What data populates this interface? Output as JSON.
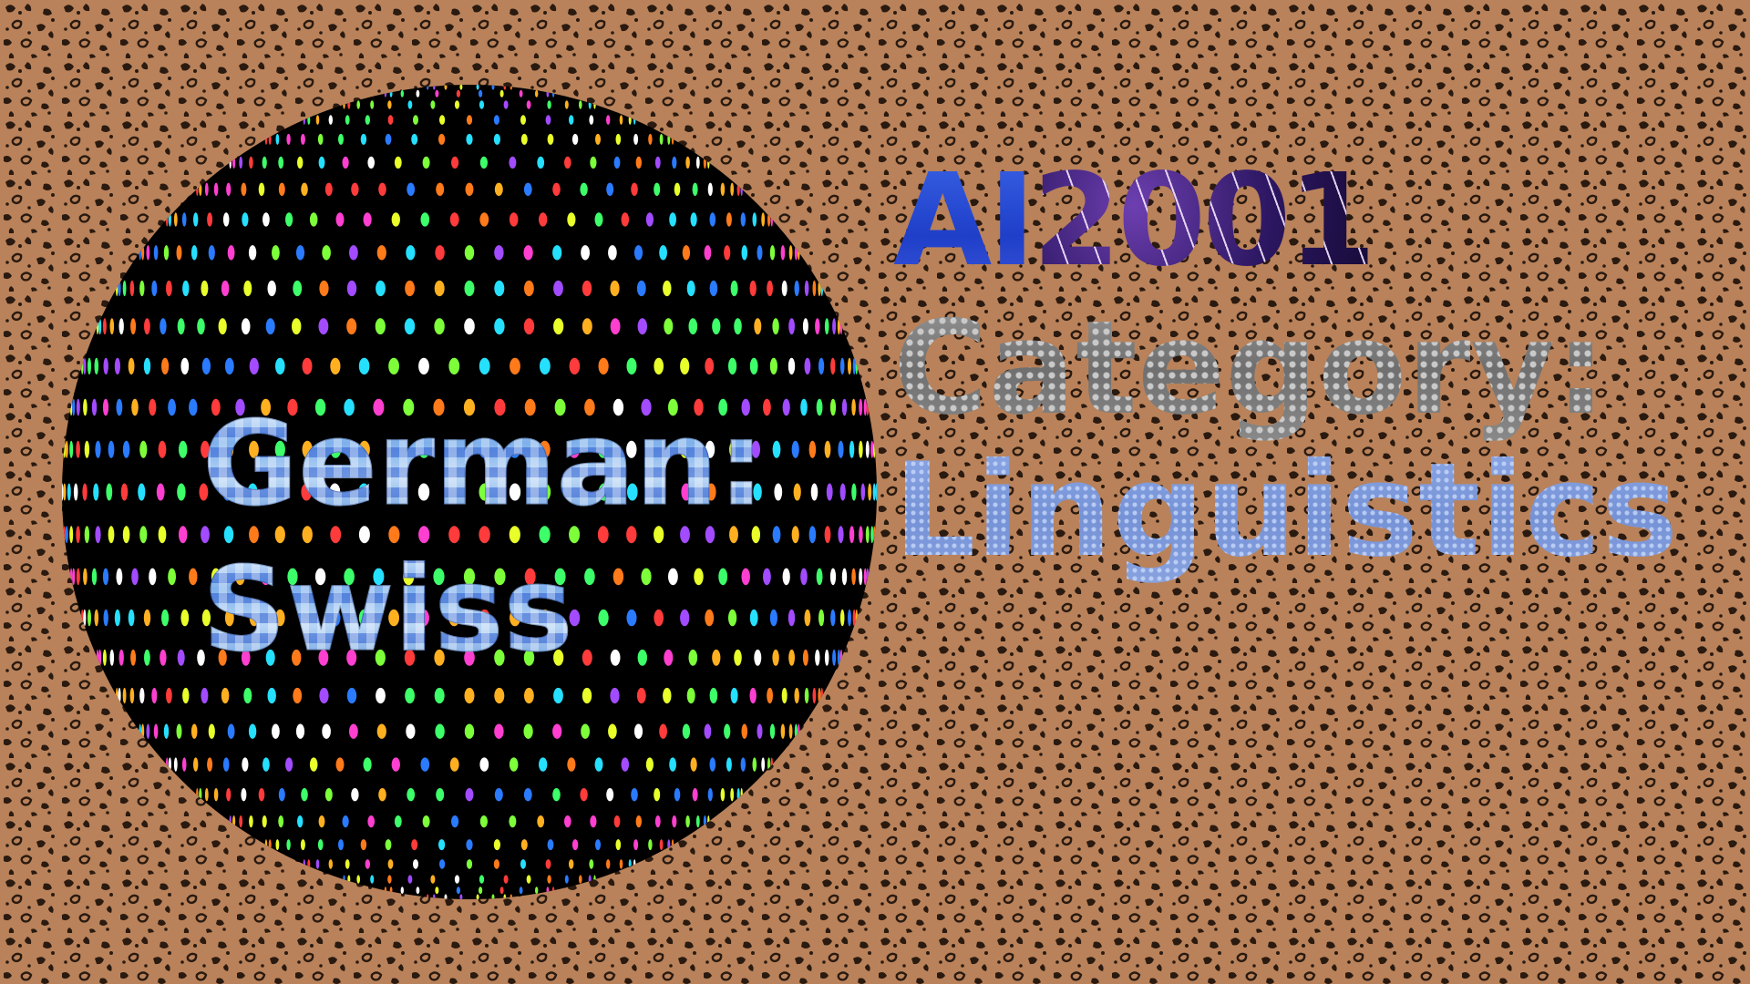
{
  "globe": {
    "line1": "German:",
    "line2": "Swiss"
  },
  "title": {
    "part_a": "AI",
    "part_b": "2001"
  },
  "category": {
    "label": "Category:",
    "value": "Linguistics"
  },
  "colors": {
    "background_base": "#b9825a",
    "background_spots": "#2a1a10",
    "sphere": "#000000",
    "title_blue": "#2747d6",
    "title_purple": "#3a1c78",
    "category_gray": "#7d7d7d",
    "subject_blue": "#7e99dc",
    "globe_text_blue": "#8fbcef"
  },
  "icons": {
    "background": "leopard-print-pattern",
    "sphere": "disco-ball-globe"
  }
}
